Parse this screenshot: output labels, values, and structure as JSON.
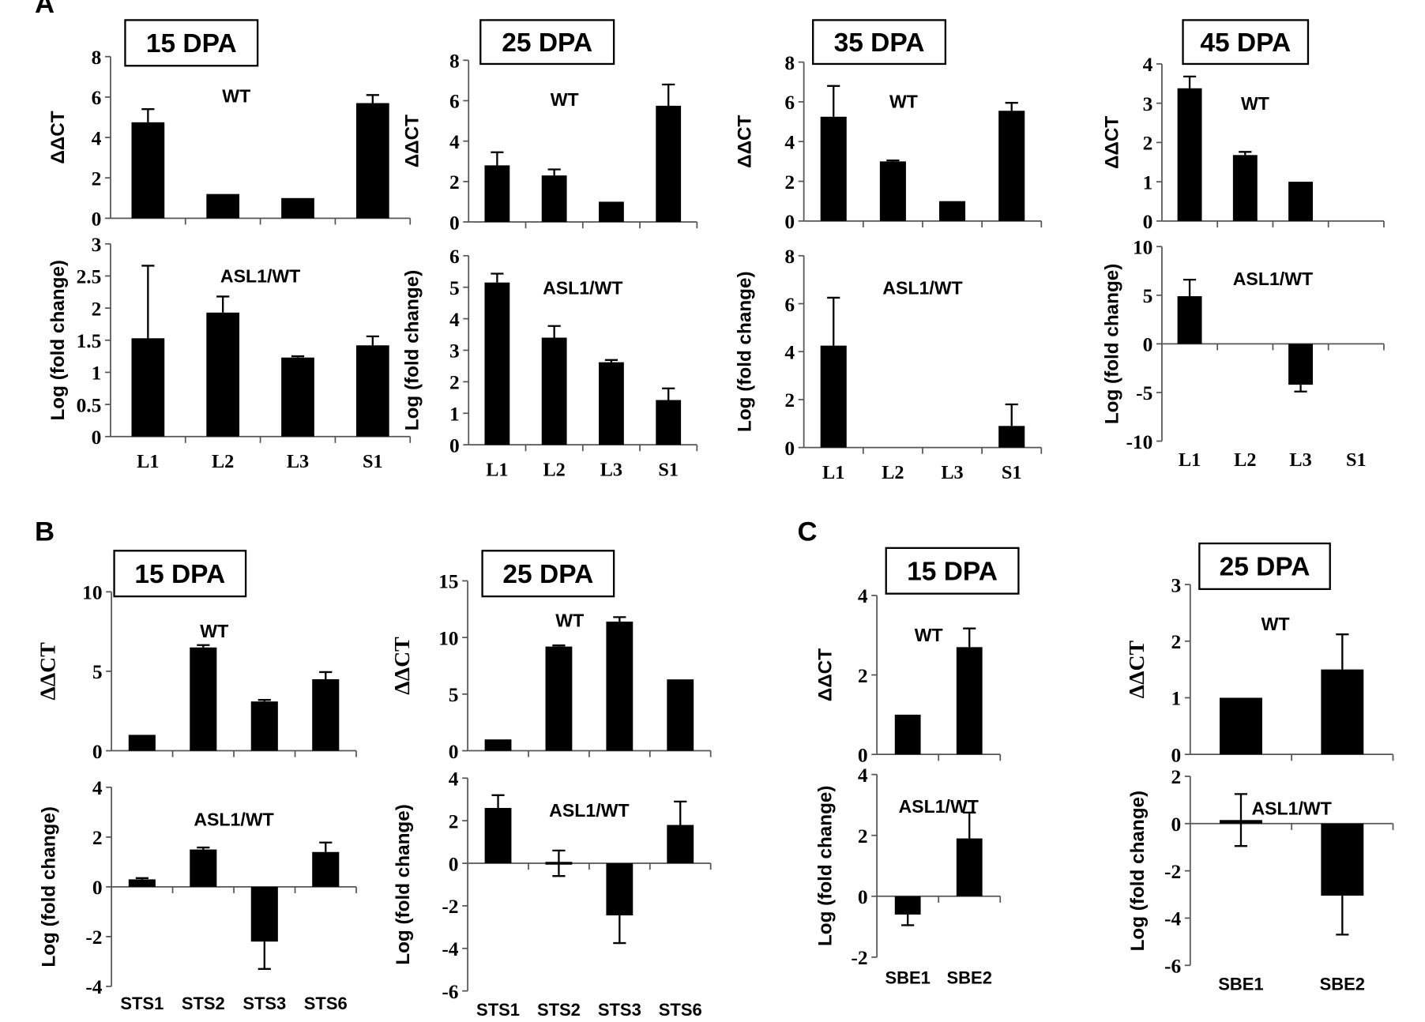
{
  "panels": [
    "A",
    "B",
    "C"
  ],
  "chart_data": [
    {
      "type": "bar",
      "panel": "A",
      "title": "15 DPA",
      "categories": [
        "L1",
        "L2",
        "L3",
        "S1"
      ],
      "top": {
        "annotation": "WT",
        "ylabel": "ΔΔCT",
        "ylim": [
          0,
          8
        ],
        "yticks": [
          0,
          2,
          4,
          6,
          8
        ],
        "values": [
          4.75,
          1.2,
          1.0,
          5.7
        ],
        "errors": [
          0.65,
          0,
          0,
          0.4
        ]
      },
      "bottom": {
        "annotation": "ASL1/WT",
        "ylabel": "Log (fold change)",
        "ylim": [
          0,
          3
        ],
        "yticks": [
          0,
          0.5,
          1,
          1.5,
          2,
          2.5,
          3
        ],
        "values": [
          1.53,
          1.93,
          1.23,
          1.42
        ],
        "errors": [
          1.13,
          0.25,
          0.02,
          0.14
        ]
      }
    },
    {
      "type": "bar",
      "panel": "A",
      "title": "25 DPA",
      "categories": [
        "L1",
        "L2",
        "L3",
        "S1"
      ],
      "top": {
        "annotation": "WT",
        "ylabel": "ΔΔCT",
        "ylim": [
          0,
          8
        ],
        "yticks": [
          0,
          2,
          4,
          6,
          8
        ],
        "values": [
          2.8,
          2.3,
          1.0,
          5.75
        ],
        "errors": [
          0.65,
          0.3,
          0,
          1.05
        ]
      },
      "bottom": {
        "annotation": "ASL1/WT",
        "ylabel": "Log (fold change)",
        "ylim": [
          0,
          6
        ],
        "yticks": [
          0,
          1,
          2,
          3,
          4,
          5,
          6
        ],
        "values": [
          5.15,
          3.4,
          2.62,
          1.42
        ],
        "errors": [
          0.28,
          0.37,
          0.07,
          0.37
        ]
      }
    },
    {
      "type": "bar",
      "panel": "A",
      "title": "35 DPA",
      "categories": [
        "L1",
        "L2",
        "L3",
        "S1"
      ],
      "top": {
        "annotation": "WT",
        "ylabel": "ΔΔCT",
        "ylim": [
          0,
          8
        ],
        "yticks": [
          0,
          2,
          4,
          6,
          8
        ],
        "values": [
          5.25,
          3.0,
          1.0,
          5.55
        ],
        "errors": [
          1.55,
          0.05,
          0,
          0.4
        ]
      },
      "bottom": {
        "annotation": "ASL1/WT",
        "ylabel": "Log (fold change)",
        "ylim": [
          0,
          8
        ],
        "yticks": [
          0,
          2,
          4,
          6,
          8
        ],
        "values": [
          4.25,
          0,
          0,
          0.9
        ],
        "errors": [
          2.0,
          0,
          0,
          0.9
        ]
      }
    },
    {
      "type": "bar",
      "panel": "A",
      "title": "45 DPA",
      "categories": [
        "L1",
        "L2",
        "L3",
        "S1"
      ],
      "top": {
        "annotation": "WT",
        "ylabel": "ΔΔCT",
        "ylim": [
          0,
          4
        ],
        "yticks": [
          0,
          1,
          2,
          3,
          4
        ],
        "values": [
          3.38,
          1.68,
          1.0,
          0
        ],
        "errors": [
          0.3,
          0.08,
          0,
          0
        ]
      },
      "bottom": {
        "annotation": "ASL1/WT",
        "ylabel": "Log (fold change)",
        "ylim": [
          -10,
          10
        ],
        "yticks": [
          -10,
          -5,
          0,
          5,
          10
        ],
        "values": [
          4.9,
          0,
          -4.2,
          0
        ],
        "errors": [
          1.7,
          0,
          0.7,
          0
        ]
      }
    },
    {
      "type": "bar",
      "panel": "B",
      "title": "15 DPA",
      "categories": [
        "STS1",
        "STS2",
        "STS3",
        "STS6"
      ],
      "top": {
        "annotation": "WT",
        "ylabel": "ΔΔCT",
        "ylim": [
          0,
          10
        ],
        "yticks": [
          0,
          5,
          10
        ],
        "values": [
          1.0,
          6.5,
          3.1,
          4.5
        ],
        "errors": [
          0,
          0.15,
          0.1,
          0.45
        ]
      },
      "bottom": {
        "annotation": "ASL1/WT",
        "ylabel": "Log (fold change)",
        "ylim": [
          -4,
          4
        ],
        "yticks": [
          -4,
          -2,
          0,
          2,
          4
        ],
        "values": [
          0.3,
          1.5,
          -2.2,
          1.4
        ],
        "errors": [
          0.05,
          0.08,
          1.1,
          0.38
        ]
      }
    },
    {
      "type": "bar",
      "panel": "B",
      "title": "25 DPA",
      "categories": [
        "STS1",
        "STS2",
        "STS3",
        "STS6"
      ],
      "top": {
        "annotation": "WT",
        "ylabel": "ΔΔCT",
        "ylim": [
          0,
          15
        ],
        "yticks": [
          0,
          5,
          10,
          15
        ],
        "values": [
          1.0,
          9.2,
          11.4,
          6.3
        ],
        "errors": [
          0,
          0.1,
          0.4,
          0
        ]
      },
      "bottom": {
        "annotation": "ASL1/WT",
        "ylabel": "Log (fold change)",
        "ylim": [
          -6,
          4
        ],
        "yticks": [
          -6,
          -4,
          -2,
          0,
          2,
          4
        ],
        "values": [
          2.6,
          0,
          -2.45,
          1.8
        ],
        "errors": [
          0.6,
          0.6,
          1.3,
          1.1
        ]
      }
    },
    {
      "type": "bar",
      "panel": "C",
      "title": "15 DPA",
      "categories": [
        "SBE1",
        "SBE2"
      ],
      "top": {
        "annotation": "WT",
        "ylabel": "ΔΔCT",
        "ylim": [
          0,
          4
        ],
        "yticks": [
          0,
          2,
          4
        ],
        "values": [
          1.0,
          2.7
        ],
        "errors": [
          0,
          0.47
        ]
      },
      "bottom": {
        "annotation": "ASL1/WT",
        "ylabel": "Log (fold change)",
        "ylim": [
          -2,
          4
        ],
        "yticks": [
          -2,
          0,
          2,
          4
        ],
        "values": [
          -0.6,
          1.9
        ],
        "errors": [
          0.35,
          0.85
        ]
      }
    },
    {
      "type": "bar",
      "panel": "C",
      "title": "25 DPA",
      "categories": [
        "SBE1",
        "SBE2"
      ],
      "top": {
        "annotation": "WT",
        "ylabel": "ΔΔCT",
        "ylim": [
          0,
          3
        ],
        "yticks": [
          0,
          1,
          2,
          3
        ],
        "values": [
          1.0,
          1.5
        ],
        "errors": [
          0,
          0.62
        ]
      },
      "bottom": {
        "annotation": "ASL1/WT",
        "ylabel": "Log (fold change)",
        "ylim": [
          -6,
          2
        ],
        "yticks": [
          -6,
          -4,
          -2,
          0,
          2
        ],
        "values": [
          0.15,
          -3.05
        ],
        "errors": [
          1.1,
          1.65
        ]
      }
    }
  ]
}
